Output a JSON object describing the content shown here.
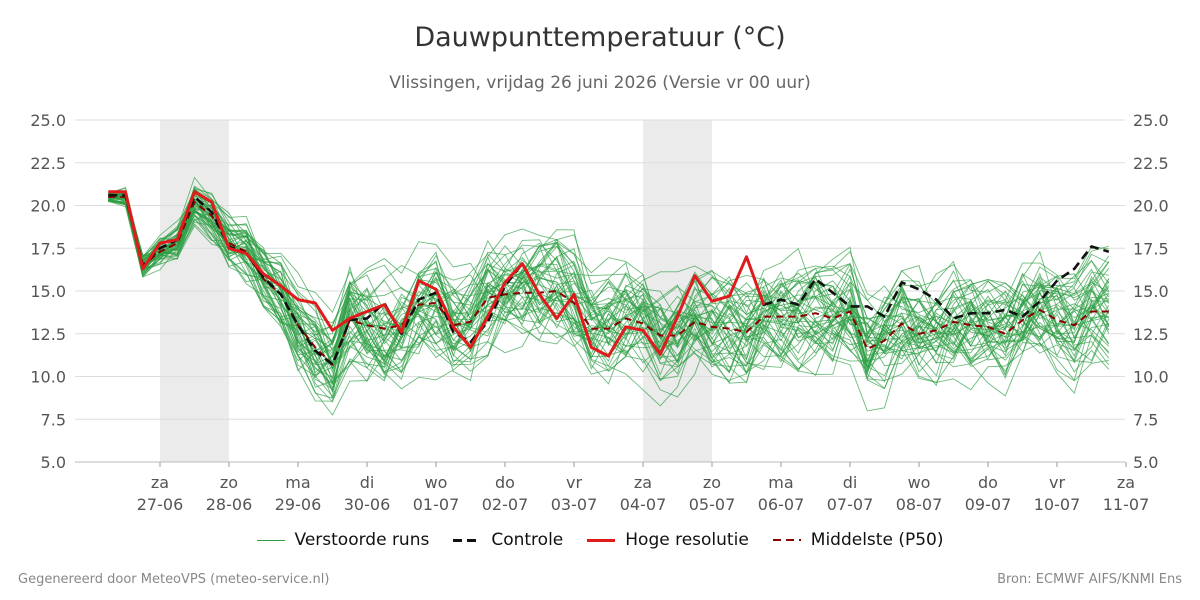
{
  "header": {
    "title": "Dauwpunttemperatuur (°C)",
    "subtitle": "Vlissingen, vrijdag 26 juni 2026 (Versie vr 00 uur)"
  },
  "footer": {
    "left": "Gegenereerd door MeteoVPS (meteo-service.nl)",
    "right": "Bron: ECMWF AIFS/KNMI Ens"
  },
  "colors": {
    "ensemble": "#2e9e44",
    "control": "#111111",
    "high_res": "#e01b1b",
    "median": "#8b0000",
    "weekend_band": "#ebebeb",
    "grid": "#dddddd"
  },
  "chart_data": {
    "type": "line",
    "ylim": [
      5.0,
      25.0
    ],
    "y_ticks": [
      "5.0",
      "7.5",
      "10.0",
      "12.5",
      "15.0",
      "17.5",
      "20.0",
      "22.5",
      "25.0"
    ],
    "x_ticks": [
      {
        "day": "za",
        "date": "27-06"
      },
      {
        "day": "zo",
        "date": "28-06"
      },
      {
        "day": "ma",
        "date": "29-06"
      },
      {
        "day": "di",
        "date": "30-06"
      },
      {
        "day": "wo",
        "date": "01-07"
      },
      {
        "day": "do",
        "date": "02-07"
      },
      {
        "day": "vr",
        "date": "03-07"
      },
      {
        "day": "za",
        "date": "04-07"
      },
      {
        "day": "zo",
        "date": "05-07"
      },
      {
        "day": "ma",
        "date": "06-07"
      },
      {
        "day": "di",
        "date": "07-07"
      },
      {
        "day": "wo",
        "date": "08-07"
      },
      {
        "day": "do",
        "date": "09-07"
      },
      {
        "day": "vr",
        "date": "10-07"
      },
      {
        "day": "za",
        "date": "11-07"
      }
    ],
    "x_start": "2026-06-26 06:00",
    "step_hours": 6,
    "legend_position": "bottom",
    "series": [
      {
        "name": "Hoge resolutie",
        "values": [
          20.8,
          20.8,
          16.3,
          17.8,
          18.0,
          20.8,
          20.2,
          17.5,
          17.2,
          16.0,
          15.3,
          14.5,
          14.3,
          12.7,
          13.4,
          13.8,
          14.2,
          12.6,
          15.6,
          15.1,
          12.9,
          11.7,
          13.5,
          15.5,
          16.6,
          14.8,
          13.4,
          14.8,
          11.7,
          11.2,
          12.9,
          12.7,
          11.3,
          13.5,
          15.9,
          14.4,
          14.7,
          17.0,
          14.2
        ]
      },
      {
        "name": "Controle",
        "values": [
          20.6,
          20.6,
          16.5,
          17.5,
          18.0,
          20.5,
          19.6,
          17.6,
          17.2,
          15.8,
          14.8,
          13.0,
          11.5,
          10.7,
          13.3,
          13.4,
          14.3,
          12.5,
          14.5,
          14.9,
          12.6,
          12.0,
          13.2,
          15.3,
          16.6,
          14.8,
          13.4,
          14.8,
          11.7,
          11.2,
          12.9,
          12.7,
          11.3,
          13.5,
          15.9,
          14.4,
          14.7,
          17.0,
          14.2,
          14.5,
          14.2,
          15.7,
          14.9,
          14.1,
          14.1,
          13.5,
          15.5,
          15.1,
          14.5,
          13.4,
          13.7,
          13.7,
          13.9,
          13.5,
          14.4,
          15.6,
          16.3,
          17.6,
          17.3
        ]
      },
      {
        "name": "Middelste (P50)",
        "values": [
          20.5,
          20.5,
          16.5,
          17.3,
          17.8,
          20.2,
          19.4,
          17.8,
          17.3,
          15.7,
          14.8,
          13.0,
          11.7,
          10.7,
          13.3,
          13.0,
          12.8,
          13.0,
          14.2,
          14.3,
          13.0,
          13.2,
          14.6,
          14.8,
          14.9,
          14.9,
          15.0,
          14.3,
          12.8,
          12.8,
          13.4,
          13.1,
          12.4,
          12.4,
          13.2,
          12.9,
          12.8,
          12.6,
          13.5,
          13.5,
          13.5,
          13.7,
          13.4,
          13.8,
          11.6,
          12.1,
          13.1,
          12.5,
          12.7,
          13.2,
          13.0,
          12.9,
          12.5,
          13.3,
          13.9,
          13.3,
          13.0,
          13.8,
          13.8
        ]
      }
    ],
    "ensemble": {
      "name": "Verstoorde runs",
      "members": 50
    }
  },
  "legend": {
    "ensemble_label": "Verstoorde runs",
    "control_label": "Controle",
    "high_res_label": "Hoge resolutie",
    "median_label": "Middelste (P50)"
  }
}
